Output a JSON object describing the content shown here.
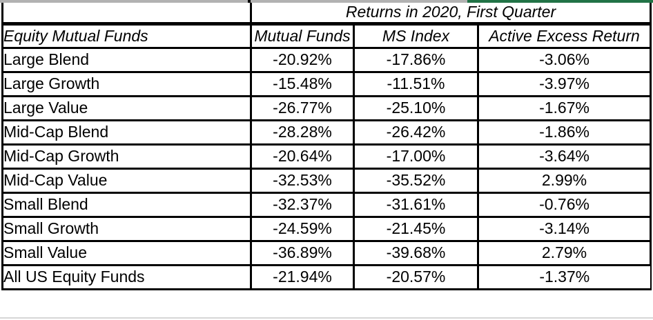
{
  "window": {
    "edge_strip": {
      "gray_color": "#b2b2b2",
      "green_color": "#217346"
    }
  },
  "table": {
    "title": "Returns in 2020, First Quarter",
    "columns": [
      "Equity Mutual Funds",
      "Mutual Funds",
      "MS Index",
      "Active Excess Return"
    ],
    "rows": [
      {
        "label": "Large Blend",
        "values": [
          "-20.92%",
          "-17.86%",
          "-3.06%"
        ]
      },
      {
        "label": "Large Growth",
        "values": [
          "-15.48%",
          "-11.51%",
          "-3.97%"
        ]
      },
      {
        "label": "Large Value",
        "values": [
          "-26.77%",
          "-25.10%",
          "-1.67%"
        ]
      },
      {
        "label": "Mid-Cap Blend",
        "values": [
          "-28.28%",
          "-26.42%",
          "-1.86%"
        ]
      },
      {
        "label": "Mid-Cap Growth",
        "values": [
          "-20.64%",
          "-17.00%",
          "-3.64%"
        ]
      },
      {
        "label": "Mid-Cap Value",
        "values": [
          "-32.53%",
          "-35.52%",
          "2.99%"
        ]
      },
      {
        "label": "Small Blend",
        "values": [
          "-32.37%",
          "-31.61%",
          "-0.76%"
        ]
      },
      {
        "label": "Small Growth",
        "values": [
          "-24.59%",
          "-21.45%",
          "-3.14%"
        ]
      },
      {
        "label": "Small Value",
        "values": [
          "-36.89%",
          "-39.68%",
          "2.79%"
        ]
      },
      {
        "label": "All US Equity Funds",
        "values": [
          "-21.94%",
          "-20.57%",
          "-1.37%"
        ]
      }
    ]
  }
}
